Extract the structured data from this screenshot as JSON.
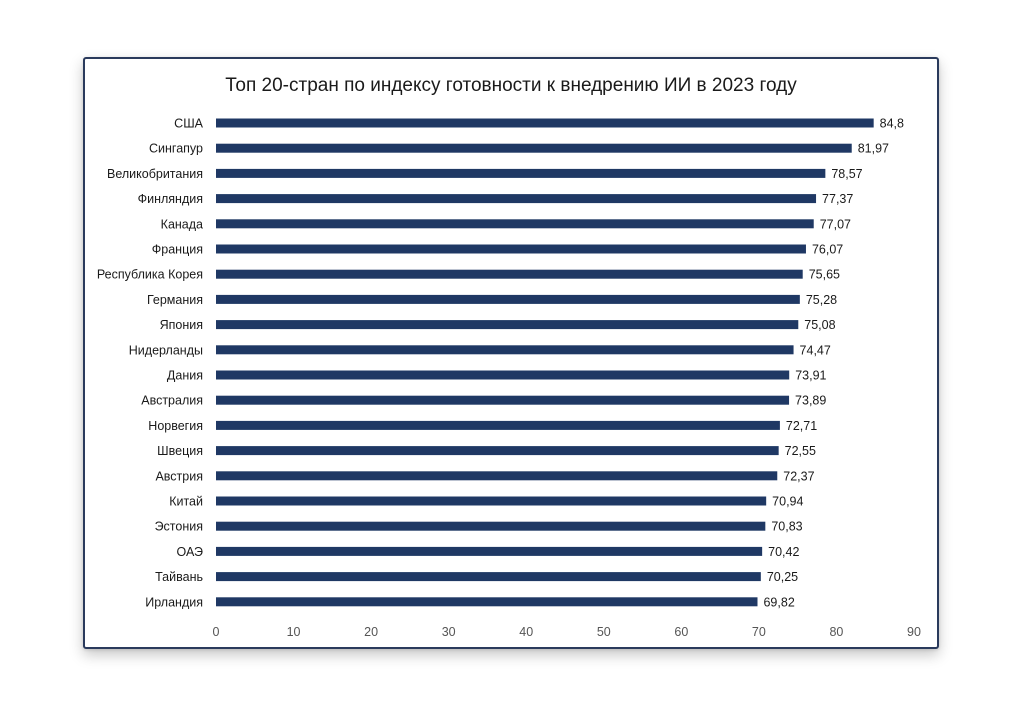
{
  "chart_data": {
    "type": "bar",
    "orientation": "horizontal",
    "title": "Топ 20-стран по индексу  готовности к внедрению ИИ в 2023 году",
    "categories": [
      "США",
      "Сингапур",
      "Великобритания",
      "Финляндия",
      "Канада",
      "Франция",
      "Республика Корея",
      "Германия",
      "Япония",
      "Нидерланды",
      "Дания",
      "Австралия",
      "Норвегия",
      "Швеция",
      "Австрия",
      "Китай",
      "Эстония",
      "ОАЭ",
      "Тайвань",
      "Ирландия"
    ],
    "values": [
      84.8,
      81.97,
      78.57,
      77.37,
      77.07,
      76.07,
      75.65,
      75.28,
      75.08,
      74.47,
      73.91,
      73.89,
      72.71,
      72.55,
      72.37,
      70.94,
      70.83,
      70.42,
      70.25,
      69.82
    ],
    "value_labels": [
      "84,8",
      "81,97",
      "78,57",
      "77,37",
      "77,07",
      "76,07",
      "75,65",
      "75,28",
      "75,08",
      "74,47",
      "73,91",
      "73,89",
      "72,71",
      "72,55",
      "72,37",
      "70,94",
      "70,83",
      "70,42",
      "70,25",
      "69,82"
    ],
    "xticks": [
      "0",
      "10",
      "20",
      "30",
      "40",
      "50",
      "60",
      "70",
      "80",
      "90"
    ],
    "xlim": [
      0,
      90
    ],
    "xlabel": "",
    "ylabel": "",
    "grid": false,
    "legend": "none",
    "bar_color": "#1f3864",
    "frame_color": "#2a3a5c"
  }
}
